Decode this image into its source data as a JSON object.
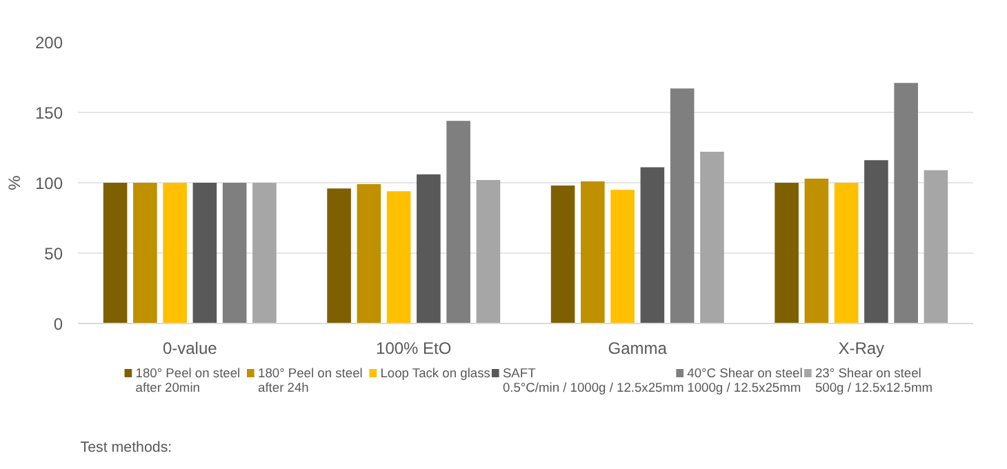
{
  "chart_data": {
    "type": "bar",
    "ylabel": "%",
    "categories": [
      "0-value",
      "100% EtO",
      "Gamma",
      "X-Ray"
    ],
    "series": [
      {
        "name": "180° Peel on steel\nafter 20min",
        "color": "#7f6000",
        "values": [
          100,
          96,
          98,
          100
        ]
      },
      {
        "name": "180° Peel on steel\nafter 24h",
        "color": "#bf9000",
        "values": [
          100,
          99,
          101,
          103
        ]
      },
      {
        "name": "Loop Tack on glass",
        "color": "#ffc000",
        "values": [
          100,
          94,
          95,
          100
        ]
      },
      {
        "name": "SAFT\n0.5°C/min / 1000g / 12.5x25mm",
        "color": "#595959",
        "values": [
          100,
          106,
          111,
          116
        ]
      },
      {
        "name": "40°C Shear on steel\n1000g / 12.5x25mm",
        "color": "#7f7f7f",
        "values": [
          100,
          144,
          167,
          171
        ]
      },
      {
        "name": "23° Shear on steel\n500g / 12.5x12.5mm",
        "color": "#a6a6a6",
        "values": [
          100,
          102,
          122,
          109
        ]
      }
    ],
    "ylim": [
      0,
      200
    ],
    "yticks": [
      0,
      50,
      100,
      150,
      200
    ],
    "grid": "y",
    "legend": "bottom",
    "annotations": [
      "Test methods:"
    ]
  }
}
